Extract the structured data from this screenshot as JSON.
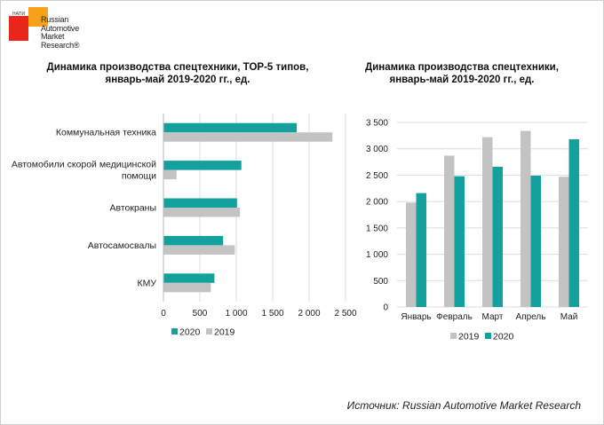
{
  "header": {
    "logo_small": "НАПИ",
    "logo_lines": [
      "Russian",
      "Automotive",
      "Market",
      "Research®"
    ]
  },
  "colors": {
    "s2020": "#13a19d",
    "s2019": "#c3c3c3",
    "grid": "#dcdcdc"
  },
  "chart_data": [
    {
      "type": "bar",
      "orientation": "horizontal",
      "title": "Динамика производства спецтехники, TOP-5 типов, январь-май 2019-2020 гг., ед.",
      "title_lines": [
        "Динамика производства спецтехники, TOP-5 типов,",
        "январь-май 2019-2020 гг., ед."
      ],
      "categories": [
        "Коммунальная техника",
        "Автомобили скорой медицинской помощи",
        "Автокраны",
        "Автосамосвалы",
        "КМУ"
      ],
      "category_lines": [
        [
          "Коммунальная техника"
        ],
        [
          "Автомобили скорой медицинской",
          "помощи"
        ],
        [
          "Автокраны"
        ],
        [
          "Автосамосвалы"
        ],
        [
          "КМУ"
        ]
      ],
      "series": [
        {
          "name": "2020",
          "values": [
            1830,
            1070,
            1010,
            820,
            700
          ]
        },
        {
          "name": "2019",
          "values": [
            2320,
            180,
            1050,
            980,
            650
          ]
        }
      ],
      "xlim": [
        0,
        2500
      ],
      "ticks": [
        0,
        500,
        1000,
        1500,
        2000,
        2500
      ],
      "tick_labels": [
        "0",
        "500",
        "1 000",
        "1 500",
        "2 000",
        "2 500"
      ],
      "legend": [
        "2020",
        "2019"
      ],
      "legend_position": "bottom",
      "grid": true
    },
    {
      "type": "bar",
      "orientation": "vertical",
      "title": "Динамика производства спецтехники, январь-май 2019-2020 гг., ед.",
      "title_lines": [
        "Динамика производства спецтехники,",
        "январь-май 2019-2020 гг., ед."
      ],
      "categories": [
        "Январь",
        "Февраль",
        "Март",
        "Апрель",
        "Май"
      ],
      "series": [
        {
          "name": "2019",
          "values": [
            1980,
            2870,
            3220,
            3340,
            2470
          ]
        },
        {
          "name": "2020",
          "values": [
            2160,
            2480,
            2660,
            2490,
            3180
          ]
        }
      ],
      "ylim": [
        0,
        3500
      ],
      "ticks": [
        0,
        500,
        1000,
        1500,
        2000,
        2500,
        3000,
        3500
      ],
      "tick_labels": [
        "0",
        "500",
        "1 000",
        "1 500",
        "2 000",
        "2 500",
        "3 000",
        "3 500"
      ],
      "legend": [
        "2019",
        "2020"
      ],
      "legend_position": "bottom",
      "grid": true
    }
  ],
  "footer": {
    "source": "Источник: Russian Automotive Market Research"
  }
}
